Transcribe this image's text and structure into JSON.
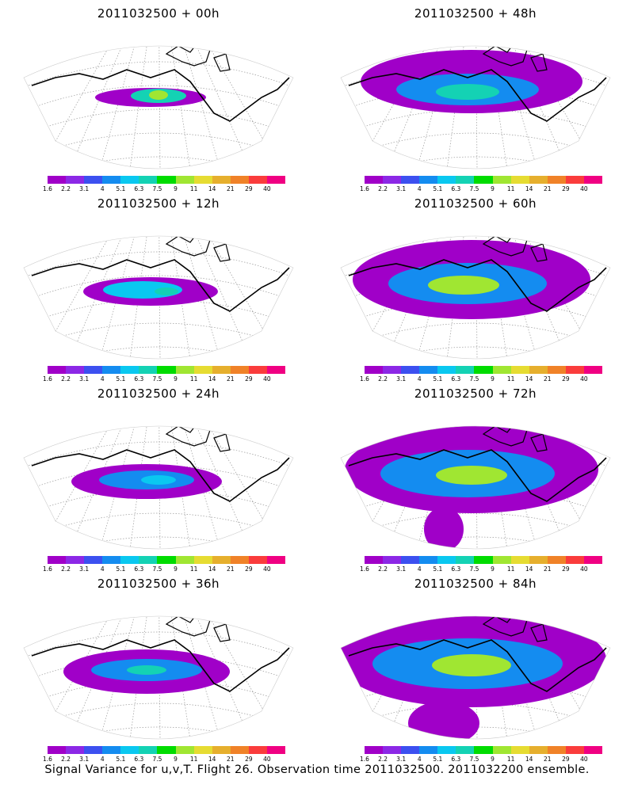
{
  "footer": "Signal Variance for u,v,T. Flight 26. Observation time 2011032500. 2011032200 ensemble.",
  "colorbar": {
    "labels": [
      "1.6",
      "2.2",
      "3.1",
      "4",
      "5.1",
      "6.3",
      "7.5",
      "9",
      "11",
      "14",
      "21",
      "29",
      "40"
    ],
    "colors": [
      "#a000c8",
      "#8c28e6",
      "#3c50f0",
      "#148cf0",
      "#0ac8f0",
      "#14d2b4",
      "#00dc00",
      "#a0e632",
      "#e6dc32",
      "#e6af2d",
      "#f08228",
      "#fa3c3c",
      "#f00082"
    ]
  },
  "panels": [
    {
      "title": "2011032500 + 00h"
    },
    {
      "title": "2011032500 + 12h"
    },
    {
      "title": "2011032500 + 24h"
    },
    {
      "title": "2011032500 + 36h"
    },
    {
      "title": "2011032500 + 48h"
    },
    {
      "title": "2011032500 + 60h"
    },
    {
      "title": "2011032500 + 72h"
    },
    {
      "title": "2011032500 + 84h"
    }
  ]
}
